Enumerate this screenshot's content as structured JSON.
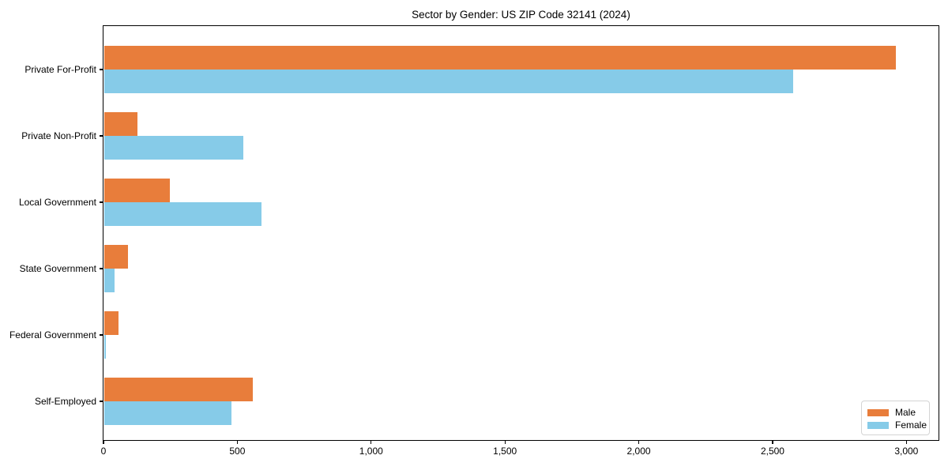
{
  "chart_data": {
    "type": "bar",
    "orientation": "horizontal",
    "title": "Sector by Gender: US ZIP Code 32141 (2024)",
    "xlabel": "",
    "ylabel": "",
    "categories": [
      "Private For-Profit",
      "Private Non-Profit",
      "Local Government",
      "State Government",
      "Federal Government",
      "Self-Employed"
    ],
    "series": [
      {
        "name": "Male",
        "color": "#e87d3b",
        "values": [
          2960,
          125,
          245,
          90,
          55,
          555
        ]
      },
      {
        "name": "Female",
        "color": "#86cbe8",
        "values": [
          2575,
          520,
          590,
          40,
          7,
          478
        ]
      }
    ],
    "xlim": [
      0,
      3120
    ],
    "x_ticks": [
      {
        "value": 0,
        "label": "0"
      },
      {
        "value": 500,
        "label": "500"
      },
      {
        "value": 1000,
        "label": "1,000"
      },
      {
        "value": 1500,
        "label": "1,500"
      },
      {
        "value": 2000,
        "label": "2,000"
      },
      {
        "value": 2500,
        "label": "2,500"
      },
      {
        "value": 3000,
        "label": "3,000"
      }
    ],
    "grid": false,
    "legend": {
      "position": "lower right",
      "items": [
        "Male",
        "Female"
      ]
    }
  }
}
